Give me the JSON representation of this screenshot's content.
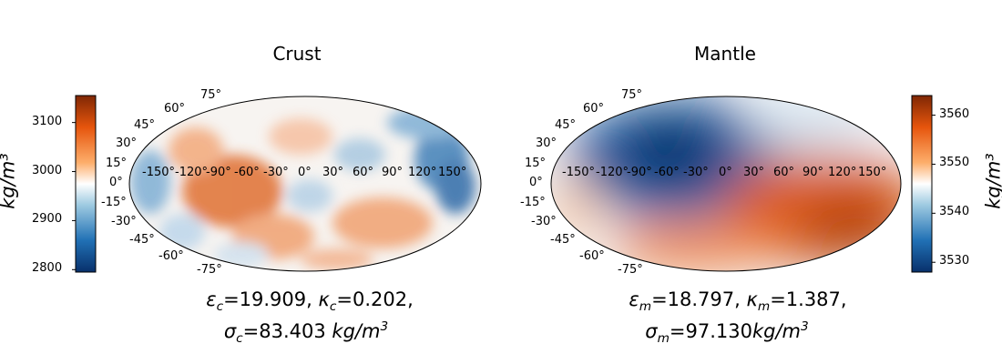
{
  "panels": [
    {
      "id": "crust",
      "title": "Crust",
      "lat_labels": [
        "75°",
        "60°",
        "45°",
        "30°",
        "15°",
        "0°",
        "-15°",
        "-30°",
        "-45°",
        "-60°",
        "-75°"
      ],
      "lon_labels": [
        "-150°",
        "-120°",
        "-90°",
        "-60°",
        "-30°",
        "0°",
        "30°",
        "60°",
        "90°",
        "120°",
        "150°"
      ],
      "colorbar": {
        "side": "left",
        "ticks": [
          "3100",
          "3000",
          "2900",
          "2800"
        ],
        "min": 2795,
        "max": 3155,
        "unit": "kg/m³"
      },
      "caption": {
        "line1": {
          "eps_sym": "ε",
          "eps_sub": "c",
          "eps_val": "=19.909, ",
          "kap_sym": "κ",
          "kap_sub": "c",
          "kap_val": "=0.202,"
        },
        "line2": {
          "sig_sym": "σ",
          "sig_sub": "c",
          "sig_val": "=83.403 ",
          "unit_base": "kg/m",
          "unit_exp": "3"
        }
      }
    },
    {
      "id": "mantle",
      "title": "Mantle",
      "lat_labels": [
        "75°",
        "60°",
        "45°",
        "30°",
        "15°",
        "0°",
        "-15°",
        "-30°",
        "-45°",
        "-60°",
        "-75°"
      ],
      "lon_labels": [
        "-150°",
        "-120°",
        "-90°",
        "-60°",
        "-30°",
        "0°",
        "30°",
        "60°",
        "90°",
        "120°",
        "150°"
      ],
      "colorbar": {
        "side": "right",
        "ticks": [
          "3560",
          "3550",
          "3540",
          "3530"
        ],
        "min": 3528,
        "max": 3564,
        "unit": "kg/m³"
      },
      "caption": {
        "line1": {
          "eps_sym": "ε",
          "eps_sub": "m",
          "eps_val": "=18.797, ",
          "kap_sym": "κ",
          "kap_sub": "m",
          "kap_val": "=1.387,"
        },
        "line2": {
          "sig_sym": "σ",
          "sig_sub": "m",
          "sig_val": "=97.130",
          "unit_base": "kg/m",
          "unit_exp": "3"
        }
      }
    }
  ],
  "colors": {
    "low": "#053061",
    "mid": "#ffffff",
    "high": "#67001f",
    "scale": [
      "#053061",
      "#2166ac",
      "#92c5de",
      "#ffffff",
      "#f4a582",
      "#e35a10",
      "#7f2704"
    ]
  }
}
